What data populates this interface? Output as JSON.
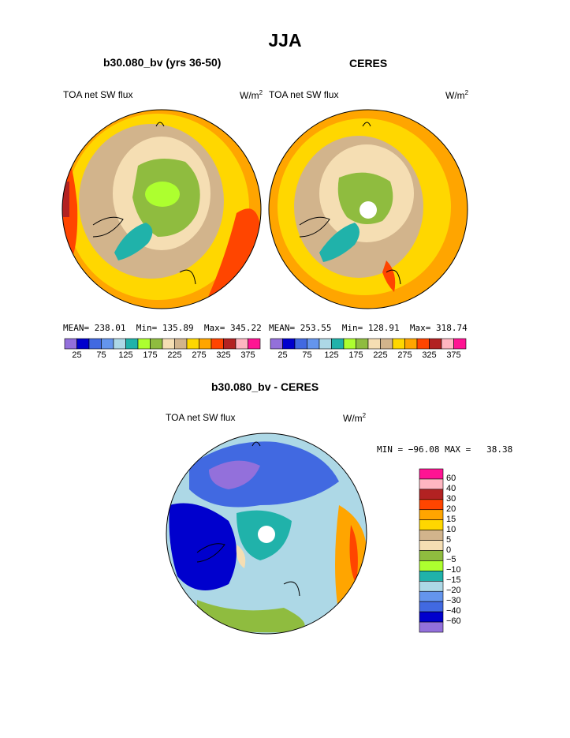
{
  "figure": {
    "title": "JJA"
  },
  "colors": {
    "levels": [
      "#9370db",
      "#0000cd",
      "#4169e1",
      "#6495ed",
      "#add8e6",
      "#20b2aa",
      "#adff2f",
      "#8fbc3f",
      "#f5deb3",
      "#d2b48c",
      "#ffd700",
      "#ffa500",
      "#ff4500",
      "#b22222",
      "#ffb6c1",
      "#ff1493"
    ],
    "diff": [
      "#9370db",
      "#0000cd",
      "#4169e1",
      "#6495ed",
      "#add8e6",
      "#20b2aa",
      "#adff2f",
      "#8fbc3f",
      "#f5deb3",
      "#d2b48c",
      "#ffd700",
      "#ffa500",
      "#ff4500",
      "#b22222",
      "#ffb6c1",
      "#ff1493"
    ]
  },
  "chart_data": [
    {
      "type": "heatmap",
      "title": "b30.080_bv (yrs 36-50)",
      "left_label": "TOA net SW flux",
      "units": "W/m",
      "units_exp": "2",
      "projection": "polar-stereographic-north",
      "stats": {
        "mean_label": "MEAN=",
        "mean": "238.01",
        "min_label": "Min=",
        "min": "135.89",
        "max_label": "Max=",
        "max": "345.22"
      },
      "colorbar_ticks": [
        "25",
        "75",
        "125",
        "175",
        "225",
        "275",
        "325",
        "375"
      ]
    },
    {
      "type": "heatmap",
      "title": "CERES",
      "left_label": "TOA net SW flux",
      "units": "W/m",
      "units_exp": "2",
      "projection": "polar-stereographic-north",
      "stats": {
        "mean_label": "MEAN=",
        "mean": "253.55",
        "min_label": "Min=",
        "min": "128.91",
        "max_label": "Max=",
        "max": "318.74"
      },
      "colorbar_ticks": [
        "25",
        "75",
        "125",
        "175",
        "225",
        "275",
        "325",
        "375"
      ]
    },
    {
      "type": "heatmap",
      "title": "b30.080_bv - CERES",
      "left_label": "TOA net SW flux",
      "units": "W/m",
      "units_exp": "2",
      "projection": "polar-stereographic-north",
      "minmax_text": "MIN = −96.08 MAX =   38.38",
      "colorbar_ticks": [
        "60",
        "40",
        "30",
        "20",
        "15",
        "10",
        "5",
        "0",
        "−5",
        "−10",
        "−15",
        "−20",
        "−30",
        "−40",
        "−60"
      ]
    }
  ]
}
